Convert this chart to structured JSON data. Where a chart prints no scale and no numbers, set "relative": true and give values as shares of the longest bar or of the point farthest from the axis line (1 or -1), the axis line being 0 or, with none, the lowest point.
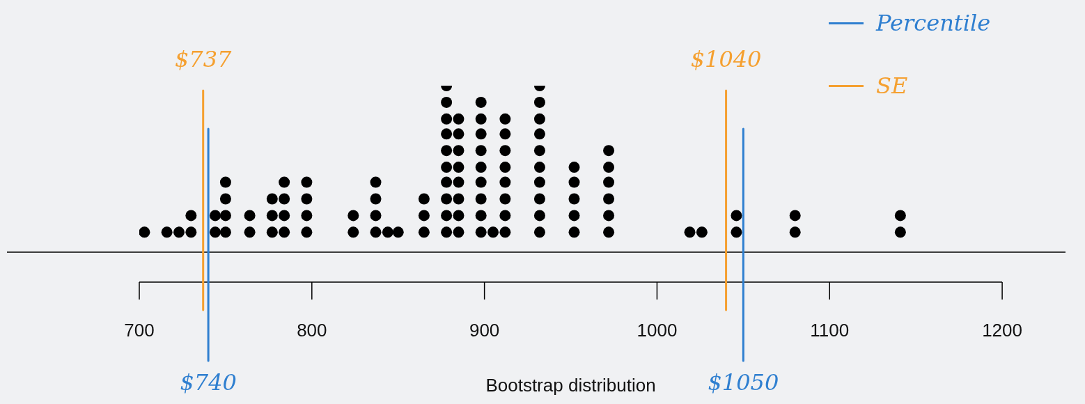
{
  "chart_data": {
    "type": "scatter",
    "xlabel": "Bootstrap distribution",
    "relative": true,
    "x": [
      703,
      716,
      723,
      730,
      730,
      744,
      744,
      750,
      750,
      750,
      750,
      764,
      764,
      777,
      777,
      777,
      784,
      784,
      784,
      784,
      797,
      797,
      797,
      797,
      824,
      824,
      837,
      837,
      837,
      837,
      844,
      850,
      865,
      865,
      865,
      878,
      878,
      878,
      878,
      878,
      878,
      878,
      878,
      878,
      878,
      885,
      885,
      885,
      885,
      885,
      885,
      885,
      885,
      898,
      898,
      898,
      898,
      898,
      898,
      898,
      898,
      898,
      905,
      912,
      912,
      912,
      912,
      912,
      912,
      912,
      912,
      932,
      932,
      932,
      932,
      932,
      932,
      932,
      932,
      932,
      932,
      952,
      952,
      952,
      952,
      952,
      972,
      972,
      972,
      972,
      972,
      972,
      1019,
      1026,
      1046,
      1046,
      1080,
      1080,
      1141,
      1141
    ],
    "values": [
      0.12,
      0.12,
      0.12,
      0.12,
      0.22,
      0.12,
      0.22,
      0.12,
      0.22,
      0.32,
      0.42,
      0.12,
      0.22,
      0.12,
      0.22,
      0.32,
      0.12,
      0.22,
      0.32,
      0.42,
      0.12,
      0.22,
      0.32,
      0.42,
      0.12,
      0.22,
      0.12,
      0.22,
      0.32,
      0.42,
      0.12,
      0.12,
      0.12,
      0.22,
      0.32,
      0.12,
      0.22,
      0.32,
      0.42,
      0.51,
      0.61,
      0.71,
      0.8,
      0.9,
      1,
      0.12,
      0.22,
      0.32,
      0.42,
      0.51,
      0.61,
      0.71,
      0.8,
      0.12,
      0.22,
      0.32,
      0.42,
      0.51,
      0.61,
      0.71,
      0.8,
      0.9,
      0.12,
      0.12,
      0.22,
      0.32,
      0.42,
      0.51,
      0.61,
      0.71,
      0.8,
      0.12,
      0.22,
      0.32,
      0.42,
      0.51,
      0.61,
      0.71,
      0.8,
      0.9,
      1,
      0.12,
      0.22,
      0.32,
      0.42,
      0.51,
      0.12,
      0.22,
      0.32,
      0.42,
      0.51,
      0.61,
      0.12,
      0.12,
      0.12,
      0.22,
      0.12,
      0.22,
      0.12,
      0.22
    ],
    "color": "#000000",
    "marker": "circle",
    "xlim": [
      700,
      1200
    ],
    "xticks": [
      700,
      800,
      900,
      1000,
      1100,
      1200
    ],
    "tick_labels": "x",
    "ref_lines": [
      {
        "axis": "x",
        "value": 740,
        "label": "$740",
        "color": "#2f7fd0"
      },
      {
        "axis": "x",
        "value": 737,
        "label": "$737",
        "color": "#f5a030"
      },
      {
        "axis": "x",
        "value": 1050,
        "label": "$1050",
        "color": "#2f7fd0"
      },
      {
        "axis": "x",
        "value": 1040,
        "label": "$1040",
        "color": "#f5a030"
      }
    ],
    "annotations": [
      "Percentile",
      "SE"
    ]
  }
}
